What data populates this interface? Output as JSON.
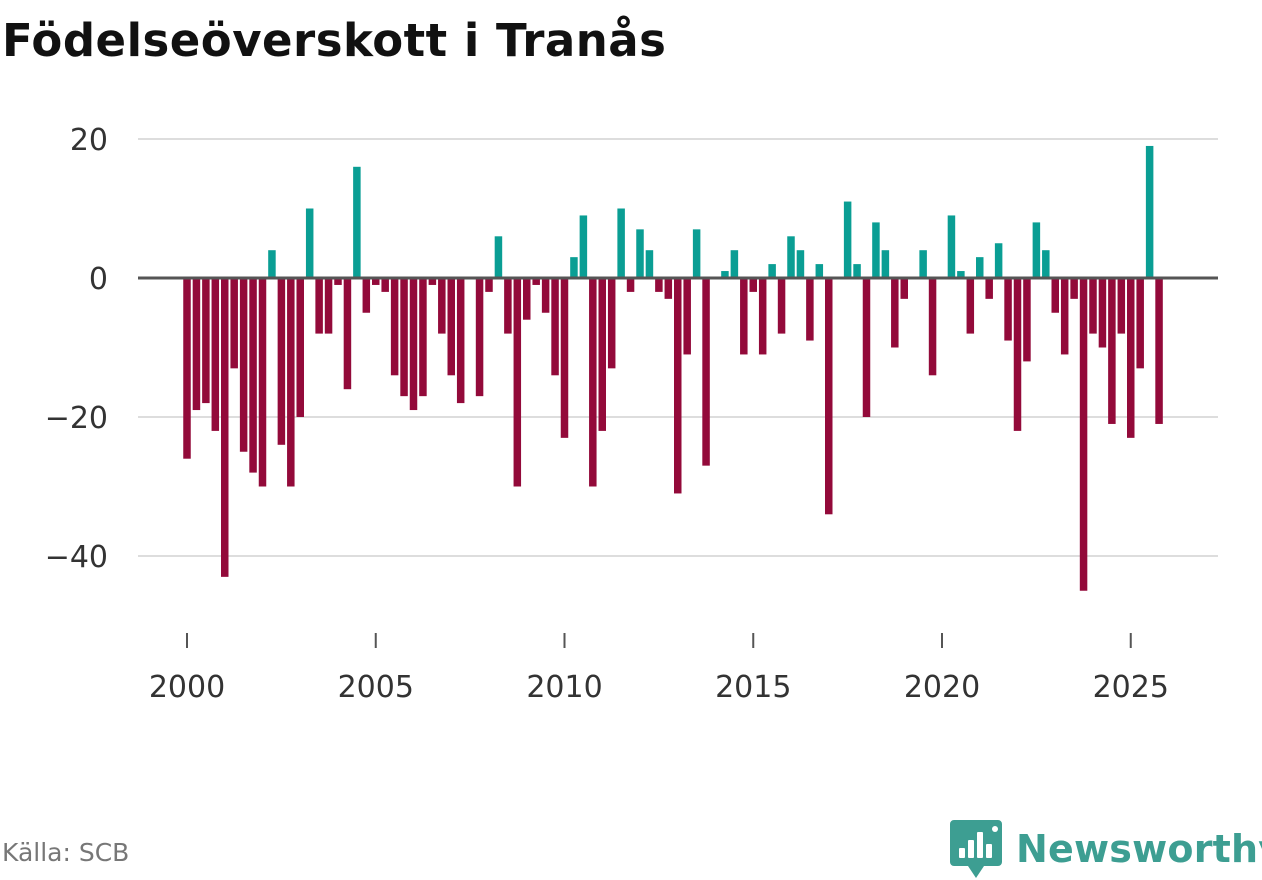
{
  "title": "Födelseöverskott i Tranås",
  "source": "Källa: SCB",
  "brand": "Newsworthy",
  "colors": {
    "positive": "#0a9e94",
    "negative": "#930a3a",
    "grid": "#dddddd",
    "zero_line": "#555555",
    "brand": "#3d9e92"
  },
  "chart_data": {
    "type": "bar",
    "title": "Födelseöverskott i Tranås",
    "xlabel": "",
    "ylabel": "",
    "x_unit": "month",
    "x_start": "2000-01",
    "x_ticks": [
      2000,
      2005,
      2010,
      2015,
      2020,
      2025
    ],
    "x_tick_labels": [
      "2000",
      "2005",
      "2010",
      "2015",
      "2020",
      "2025"
    ],
    "y_ticks": [
      20,
      0,
      -20,
      -40
    ],
    "y_tick_labels": [
      "20",
      "0",
      "−20",
      "−40"
    ],
    "ylim": [
      -49,
      23
    ],
    "xlim": [
      1999.5,
      2027.5
    ],
    "grid": true,
    "series": [
      {
        "name": "Födelseöverskott",
        "points": [
          {
            "t": 2000.0,
            "v": -26
          },
          {
            "t": 2000.25,
            "v": -19
          },
          {
            "t": 2000.5,
            "v": -18
          },
          {
            "t": 2000.75,
            "v": -22
          },
          {
            "t": 2001.0,
            "v": -43
          },
          {
            "t": 2001.25,
            "v": -13
          },
          {
            "t": 2001.5,
            "v": -25
          },
          {
            "t": 2001.75,
            "v": -28
          },
          {
            "t": 2002.0,
            "v": -30
          },
          {
            "t": 2002.25,
            "v": 4
          },
          {
            "t": 2002.5,
            "v": -24
          },
          {
            "t": 2002.75,
            "v": -30
          },
          {
            "t": 2003.0,
            "v": -20
          },
          {
            "t": 2003.25,
            "v": 10
          },
          {
            "t": 2003.5,
            "v": -8
          },
          {
            "t": 2003.75,
            "v": -8
          },
          {
            "t": 2004.0,
            "v": -1
          },
          {
            "t": 2004.25,
            "v": -16
          },
          {
            "t": 2004.5,
            "v": 16
          },
          {
            "t": 2004.75,
            "v": -5
          },
          {
            "t": 2005.0,
            "v": -1
          },
          {
            "t": 2005.25,
            "v": -2
          },
          {
            "t": 2005.5,
            "v": -14
          },
          {
            "t": 2005.75,
            "v": -17
          },
          {
            "t": 2006.0,
            "v": -19
          },
          {
            "t": 2006.25,
            "v": -17
          },
          {
            "t": 2006.5,
            "v": -1
          },
          {
            "t": 2006.75,
            "v": -8
          },
          {
            "t": 2007.0,
            "v": -14
          },
          {
            "t": 2007.25,
            "v": -18
          },
          {
            "t": 2007.75,
            "v": -17
          },
          {
            "t": 2008.0,
            "v": -2
          },
          {
            "t": 2008.25,
            "v": 6
          },
          {
            "t": 2008.5,
            "v": -8
          },
          {
            "t": 2008.75,
            "v": -30
          },
          {
            "t": 2009.0,
            "v": -6
          },
          {
            "t": 2009.25,
            "v": -1
          },
          {
            "t": 2009.5,
            "v": -5
          },
          {
            "t": 2009.75,
            "v": -14
          },
          {
            "t": 2010.0,
            "v": -23
          },
          {
            "t": 2010.25,
            "v": 3
          },
          {
            "t": 2010.5,
            "v": 9
          },
          {
            "t": 2010.75,
            "v": -30
          },
          {
            "t": 2011.0,
            "v": -22
          },
          {
            "t": 2011.25,
            "v": -13
          },
          {
            "t": 2011.5,
            "v": 10
          },
          {
            "t": 2011.75,
            "v": -2
          },
          {
            "t": 2012.0,
            "v": 7
          },
          {
            "t": 2012.25,
            "v": 4
          },
          {
            "t": 2012.5,
            "v": -2
          },
          {
            "t": 2012.75,
            "v": -3
          },
          {
            "t": 2013.0,
            "v": -31
          },
          {
            "t": 2013.25,
            "v": -11
          },
          {
            "t": 2013.5,
            "v": 7
          },
          {
            "t": 2013.75,
            "v": -27
          },
          {
            "t": 2014.25,
            "v": 1
          },
          {
            "t": 2014.5,
            "v": 4
          },
          {
            "t": 2014.75,
            "v": -11
          },
          {
            "t": 2015.0,
            "v": -2
          },
          {
            "t": 2015.25,
            "v": -11
          },
          {
            "t": 2015.5,
            "v": 2
          },
          {
            "t": 2015.75,
            "v": -8
          },
          {
            "t": 2016.0,
            "v": 6
          },
          {
            "t": 2016.25,
            "v": 4
          },
          {
            "t": 2016.5,
            "v": -9
          },
          {
            "t": 2016.75,
            "v": 2
          },
          {
            "t": 2017.0,
            "v": -34
          },
          {
            "t": 2017.5,
            "v": 11
          },
          {
            "t": 2017.75,
            "v": 2
          },
          {
            "t": 2018.0,
            "v": -20
          },
          {
            "t": 2018.25,
            "v": 8
          },
          {
            "t": 2018.5,
            "v": 4
          },
          {
            "t": 2018.75,
            "v": -10
          },
          {
            "t": 2019.0,
            "v": -3
          },
          {
            "t": 2019.5,
            "v": 4
          },
          {
            "t": 2019.75,
            "v": -14
          },
          {
            "t": 2020.25,
            "v": 9
          },
          {
            "t": 2020.5,
            "v": 1
          },
          {
            "t": 2020.75,
            "v": -8
          },
          {
            "t": 2021.0,
            "v": 3
          },
          {
            "t": 2021.25,
            "v": -3
          },
          {
            "t": 2021.5,
            "v": 5
          },
          {
            "t": 2021.75,
            "v": -9
          },
          {
            "t": 2022.0,
            "v": -22
          },
          {
            "t": 2022.25,
            "v": -12
          },
          {
            "t": 2022.5,
            "v": 8
          },
          {
            "t": 2022.75,
            "v": 4
          },
          {
            "t": 2023.0,
            "v": -5
          },
          {
            "t": 2023.25,
            "v": -11
          },
          {
            "t": 2023.5,
            "v": -3
          },
          {
            "t": 2023.75,
            "v": -45
          },
          {
            "t": 2024.0,
            "v": -8
          },
          {
            "t": 2024.25,
            "v": -10
          },
          {
            "t": 2024.5,
            "v": -21
          },
          {
            "t": 2024.75,
            "v": -8
          },
          {
            "t": 2025.0,
            "v": -23
          },
          {
            "t": 2025.25,
            "v": -13
          },
          {
            "t": 2025.5,
            "v": 19
          },
          {
            "t": 2025.75,
            "v": -21
          }
        ]
      }
    ]
  }
}
